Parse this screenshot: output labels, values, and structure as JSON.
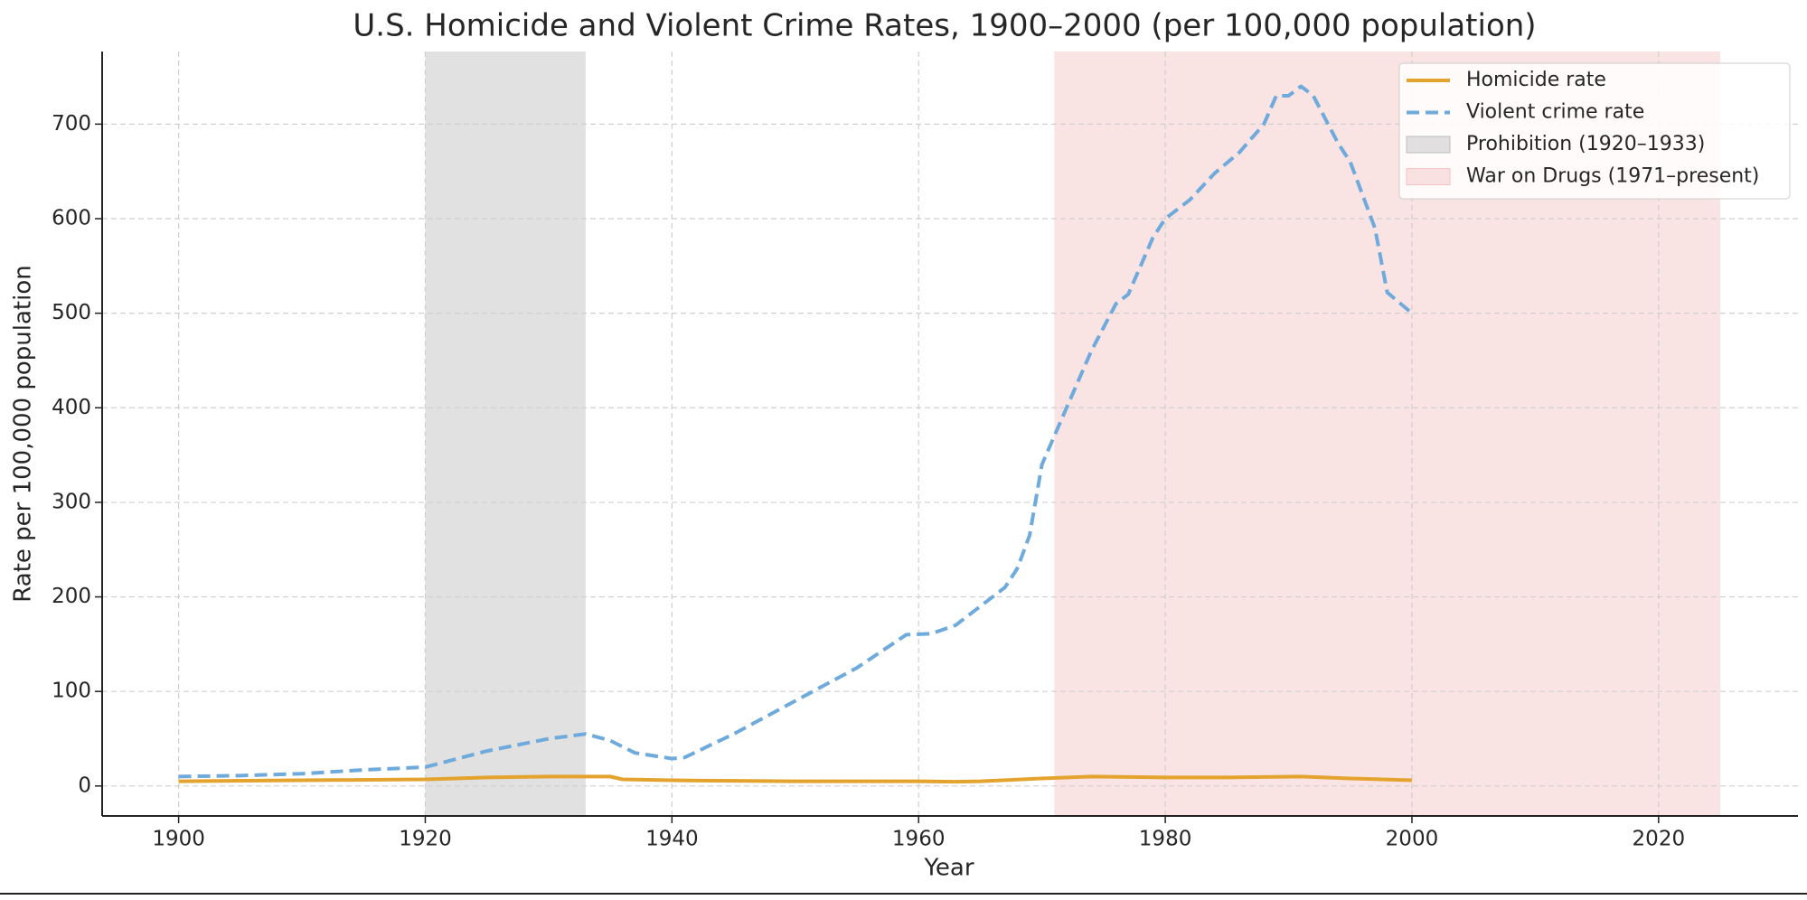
{
  "chart_data": {
    "type": "line",
    "title": "U.S. Homicide and Violent Crime Rates, 1900–2000 (per 100,000 population)",
    "x_label": "Year",
    "y_label": "Rate per 100,000 population",
    "xlim": [
      1893.8,
      2031.3
    ],
    "xticks": [
      1900,
      1920,
      1940,
      1960,
      1980,
      2000,
      2020
    ],
    "ylim": [
      -31.7,
      776.8
    ],
    "yticks": [
      0,
      100,
      200,
      300,
      400,
      500,
      600,
      700
    ],
    "grid": true,
    "legend": "upper right",
    "series": [
      {
        "name": "Homicide rate",
        "color": "#e3a32d",
        "style": "solid",
        "x": [
          1900,
          1910,
          1920,
          1925,
          1930,
          1935,
          1936,
          1940,
          1950,
          1960,
          1963,
          1965,
          1970,
          1974,
          1980,
          1985,
          1991,
          1995,
          2000
        ],
        "values": [
          5,
          6,
          7,
          9,
          10,
          10,
          7,
          6,
          5,
          5,
          4.5,
          5,
          8,
          10,
          9,
          9,
          10,
          8,
          6
        ]
      },
      {
        "name": "Violent crime rate",
        "color": "#6eaadb",
        "style": "dashed",
        "x": [
          1900,
          1905,
          1910,
          1915,
          1920,
          1925,
          1930,
          1933,
          1935,
          1937,
          1940,
          1941,
          1945,
          1950,
          1955,
          1959,
          1961,
          1963,
          1965,
          1967,
          1968,
          1969,
          1970,
          1972,
          1974,
          1976,
          1977,
          1979,
          1980,
          1982,
          1984,
          1986,
          1988,
          1989,
          1990,
          1991,
          1992,
          1994,
          1995,
          1997,
          1998,
          2000
        ],
        "values": [
          10,
          11,
          13,
          17,
          20,
          37,
          50,
          55,
          48,
          35,
          29,
          30,
          55,
          90,
          125,
          160,
          161,
          170,
          190,
          210,
          230,
          265,
          340,
          400,
          460,
          510,
          520,
          580,
          600,
          620,
          648,
          670,
          700,
          730,
          730,
          740,
          730,
          680,
          660,
          590,
          522,
          500
        ]
      }
    ],
    "spans": [
      {
        "name": "Prohibition (1920–1933)",
        "start": 1920,
        "end": 1933,
        "color": "#bdbdbd"
      },
      {
        "name": "War on Drugs (1971–present)",
        "start": 1971,
        "end": 2025,
        "color": "#f4c2c2"
      }
    ]
  }
}
